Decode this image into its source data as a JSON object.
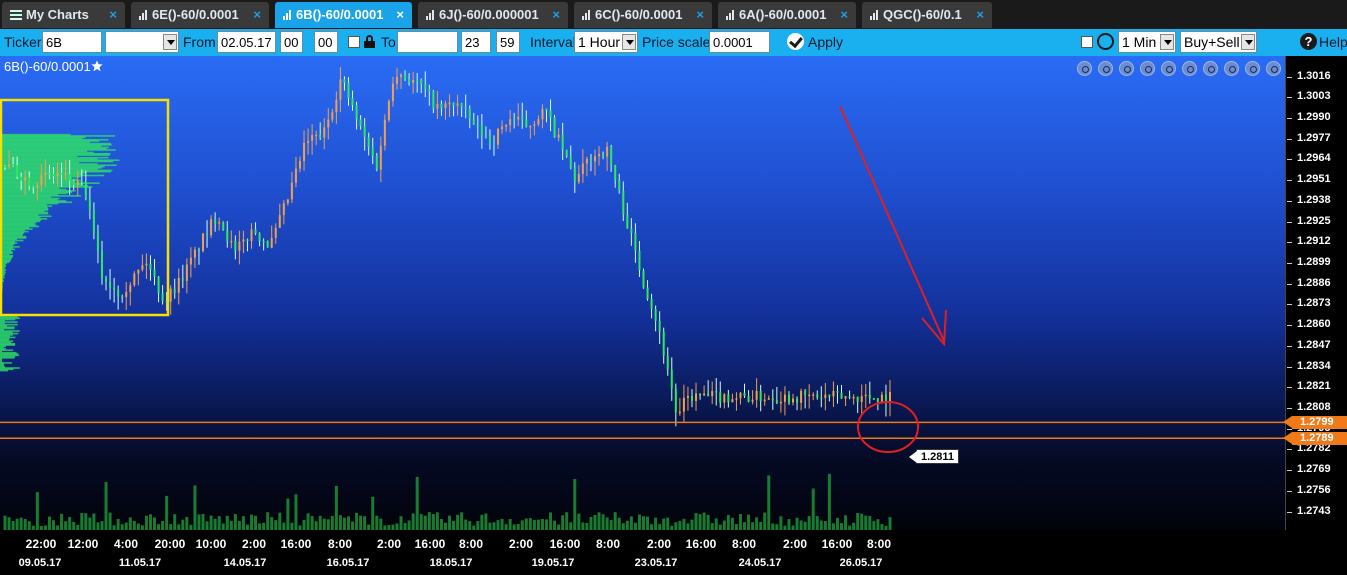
{
  "tabs": [
    {
      "label": "My Charts",
      "active": false,
      "icon": "menu-icon"
    },
    {
      "label": "6E()-60/0.0001",
      "active": false,
      "icon": "bar-chart-icon"
    },
    {
      "label": "6B()-60/0.0001",
      "active": true,
      "icon": "bar-chart-icon"
    },
    {
      "label": "6J()-60/0.000001",
      "active": false,
      "icon": "bar-chart-icon"
    },
    {
      "label": "6C()-60/0.0001",
      "active": false,
      "icon": "bar-chart-icon"
    },
    {
      "label": "6A()-60/0.0001",
      "active": false,
      "icon": "bar-chart-icon"
    },
    {
      "label": "QGC()-60/0.1",
      "active": false,
      "icon": "bar-chart-icon"
    }
  ],
  "tab_close_symbol": "×",
  "toolbar": {
    "ticker_label": "Ticker",
    "ticker_value": "6B",
    "ticker_select_value": "",
    "from_label": "From",
    "from_date": "02.05.17",
    "from_hour": "00",
    "from_minute": "00",
    "to_label": "To",
    "to_date": "",
    "to_hour": "23",
    "to_minute": "59",
    "interval_label": "Interval",
    "interval_value": "1 Hour",
    "price_scale_label": "Price scale",
    "price_scale_value": "0.0001",
    "apply_label": "Apply",
    "timeframe_value": "1 Min",
    "side_value": "Buy+Sell",
    "help_label": "Help"
  },
  "chart": {
    "title": "6B()-60/0.0001",
    "favorite_icon": "star-icon",
    "tools": [
      "zoom-in-icon",
      "zoom-out-icon",
      "zoom-reset-icon",
      "zoom-fit-icon",
      "grid-icon",
      "draw-icon",
      "refresh-icon",
      "settings-icon",
      "expand-icon",
      "close-icon",
      "collapse-icon"
    ],
    "callout_price": "1.2811",
    "colors": {
      "up": "#f0a050",
      "down": "#2fe860",
      "volume": "#1f9a3a",
      "support": "#f07a18",
      "annotation": "#e02020",
      "highlight_box": "#f5e100"
    }
  },
  "chart_data": {
    "type": "candlestick",
    "symbol": "6B",
    "interval": "1 Hour",
    "y_ticks": [
      "1.3016",
      "1.3003",
      "1.2990",
      "1.2977",
      "1.2964",
      "1.2951",
      "1.2938",
      "1.2925",
      "1.2912",
      "1.2899",
      "1.2886",
      "1.2873",
      "1.2860",
      "1.2847",
      "1.2834",
      "1.2821",
      "1.2808",
      "1.2795",
      "1.2782",
      "1.2769",
      "1.2756",
      "1.2743"
    ],
    "x_time_ticks": [
      "22:00",
      "12:00",
      "4:00",
      "20:00",
      "10:00",
      "2:00",
      "16:00",
      "8:00",
      "2:00",
      "16:00",
      "8:00",
      "2:00",
      "16:00",
      "8:00",
      "2:00",
      "16:00",
      "8:00",
      "2:00",
      "16:00",
      "8:00"
    ],
    "x_date_ticks": [
      "09.05.17",
      "11.05.17",
      "14.05.17",
      "16.05.17",
      "18.05.17",
      "19.05.17",
      "23.05.17",
      "24.05.17",
      "26.05.17"
    ],
    "ylim": [
      1.2735,
      1.3026
    ],
    "price_path": [
      [
        0,
        1.296
      ],
      [
        0.03,
        1.295
      ],
      [
        0.06,
        1.2955
      ],
      [
        0.09,
        1.2945
      ],
      [
        0.11,
        1.289
      ],
      [
        0.13,
        1.288
      ],
      [
        0.16,
        1.29
      ],
      [
        0.18,
        1.2875
      ],
      [
        0.2,
        1.289
      ],
      [
        0.22,
        1.291
      ],
      [
        0.24,
        1.293
      ],
      [
        0.26,
        1.2905
      ],
      [
        0.28,
        1.292
      ],
      [
        0.3,
        1.291
      ],
      [
        0.32,
        1.294
      ],
      [
        0.34,
        1.2975
      ],
      [
        0.36,
        1.298
      ],
      [
        0.38,
        1.3015
      ],
      [
        0.4,
        1.2985
      ],
      [
        0.42,
        1.296
      ],
      [
        0.44,
        1.302
      ],
      [
        0.47,
        1.301
      ],
      [
        0.49,
        1.2995
      ],
      [
        0.51,
        1.3
      ],
      [
        0.53,
        1.2985
      ],
      [
        0.55,
        1.2975
      ],
      [
        0.57,
        1.299
      ],
      [
        0.59,
        1.2985
      ],
      [
        0.61,
        1.2995
      ],
      [
        0.63,
        1.297
      ],
      [
        0.645,
        1.295
      ],
      [
        0.66,
        1.2965
      ],
      [
        0.68,
        1.297
      ],
      [
        0.7,
        1.293
      ],
      [
        0.72,
        1.289
      ],
      [
        0.735,
        1.2865
      ],
      [
        0.75,
        1.283
      ],
      [
        0.76,
        1.28
      ],
      [
        0.77,
        1.2815
      ]
    ],
    "support_levels": [
      "1.2799",
      "1.2789"
    ],
    "last_price": "1.2811"
  }
}
